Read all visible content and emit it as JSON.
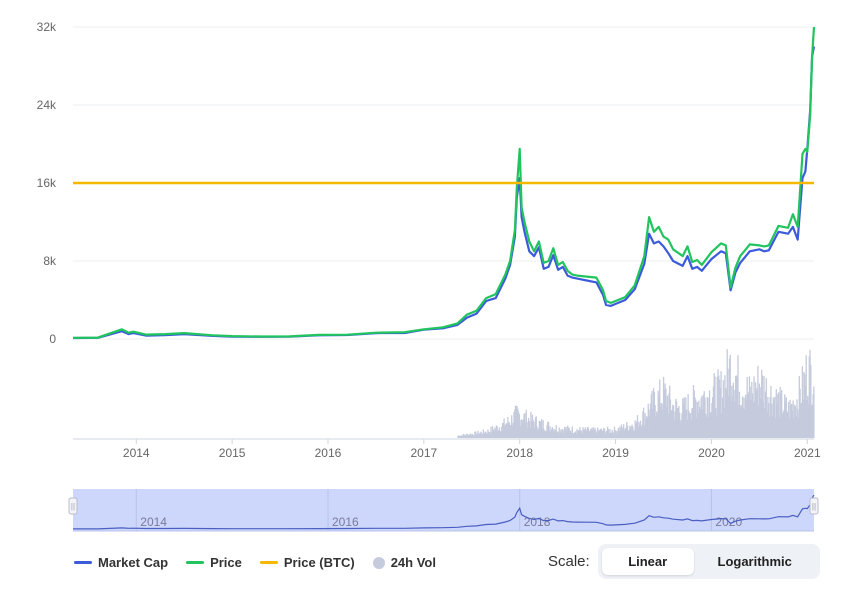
{
  "chart_data": {
    "type": "line",
    "y_ticks": [
      "32k",
      "24k",
      "16k",
      "8k",
      "0"
    ],
    "y_tick_values": [
      32000,
      24000,
      16000,
      8000,
      0
    ],
    "ylim": [
      0,
      32000
    ],
    "x_ticks": [
      "2014",
      "2015",
      "2016",
      "2017",
      "2018",
      "2019",
      "2020",
      "2021"
    ],
    "x_tick_values": [
      2014,
      2015,
      2016,
      2017,
      2018,
      2019,
      2020,
      2021
    ],
    "xlim": [
      2013.34,
      2021.07
    ],
    "grid": true,
    "legend_position": "bottom-left",
    "series": [
      {
        "name": "Market Cap",
        "color": "#3b5bdb",
        "x": [
          2013.34,
          2013.6,
          2013.85,
          2013.92,
          2013.97,
          2014.1,
          2014.3,
          2014.5,
          2014.8,
          2015.0,
          2015.3,
          2015.6,
          2015.9,
          2016.2,
          2016.5,
          2016.8,
          2017.0,
          2017.2,
          2017.35,
          2017.45,
          2017.55,
          2017.65,
          2017.75,
          2017.85,
          2017.9,
          2017.95,
          2017.97,
          2018.0,
          2018.02,
          2018.05,
          2018.1,
          2018.15,
          2018.2,
          2018.25,
          2018.3,
          2018.35,
          2018.4,
          2018.45,
          2018.5,
          2018.55,
          2018.6,
          2018.7,
          2018.8,
          2018.87,
          2018.9,
          2018.95,
          2019.0,
          2019.1,
          2019.2,
          2019.3,
          2019.35,
          2019.4,
          2019.45,
          2019.5,
          2019.55,
          2019.6,
          2019.7,
          2019.75,
          2019.8,
          2019.85,
          2019.9,
          2020.0,
          2020.1,
          2020.15,
          2020.2,
          2020.25,
          2020.3,
          2020.4,
          2020.5,
          2020.55,
          2020.6,
          2020.7,
          2020.8,
          2020.85,
          2020.9,
          2020.95,
          2020.98,
          2021.0,
          2021.03,
          2021.05,
          2021.07
        ],
        "values": [
          100,
          120,
          800,
          500,
          600,
          350,
          400,
          500,
          320,
          250,
          230,
          240,
          380,
          410,
          600,
          620,
          950,
          1100,
          1450,
          2200,
          2600,
          3900,
          4200,
          6200,
          7600,
          10500,
          14500,
          16500,
          12500,
          11000,
          9000,
          8500,
          9400,
          7200,
          7400,
          8600,
          7100,
          7400,
          6500,
          6300,
          6200,
          6000,
          5800,
          4500,
          3500,
          3400,
          3600,
          4000,
          5100,
          7700,
          10800,
          9800,
          10000,
          9500,
          8800,
          8000,
          7500,
          8500,
          7200,
          7400,
          7000,
          8200,
          9000,
          8800,
          5000,
          6800,
          7800,
          9000,
          9200,
          9000,
          9100,
          11000,
          10800,
          11500,
          10200,
          16500,
          17200,
          19500,
          23500,
          29000,
          30000
        ]
      },
      {
        "name": "Price",
        "color": "#21c45d",
        "x": [
          2013.34,
          2013.6,
          2013.85,
          2013.92,
          2013.97,
          2014.1,
          2014.3,
          2014.5,
          2014.8,
          2015.0,
          2015.3,
          2015.6,
          2015.9,
          2016.2,
          2016.5,
          2016.8,
          2017.0,
          2017.2,
          2017.35,
          2017.45,
          2017.55,
          2017.65,
          2017.75,
          2017.85,
          2017.9,
          2017.95,
          2017.97,
          2018.0,
          2018.02,
          2018.05,
          2018.1,
          2018.15,
          2018.2,
          2018.25,
          2018.3,
          2018.35,
          2018.4,
          2018.45,
          2018.5,
          2018.55,
          2018.6,
          2018.7,
          2018.8,
          2018.87,
          2018.9,
          2018.95,
          2019.0,
          2019.1,
          2019.2,
          2019.3,
          2019.35,
          2019.4,
          2019.45,
          2019.5,
          2019.55,
          2019.6,
          2019.7,
          2019.75,
          2019.8,
          2019.85,
          2019.9,
          2020.0,
          2020.1,
          2020.15,
          2020.2,
          2020.25,
          2020.3,
          2020.4,
          2020.5,
          2020.55,
          2020.6,
          2020.7,
          2020.8,
          2020.85,
          2020.9,
          2020.95,
          2020.98,
          2021.0,
          2021.03,
          2021.05,
          2021.07
        ],
        "values": [
          120,
          140,
          1000,
          650,
          750,
          450,
          500,
          600,
          380,
          300,
          260,
          270,
          420,
          440,
          650,
          700,
          1000,
          1200,
          1600,
          2500,
          2900,
          4200,
          4600,
          6600,
          8000,
          11200,
          15500,
          19500,
          13500,
          12000,
          10000,
          9000,
          10000,
          7800,
          8000,
          9300,
          7600,
          7900,
          7000,
          6600,
          6500,
          6400,
          6300,
          5000,
          3900,
          3700,
          3900,
          4300,
          5500,
          8500,
          12500,
          11000,
          11500,
          10500,
          10200,
          9200,
          8500,
          9500,
          7900,
          8100,
          7600,
          8900,
          9800,
          9600,
          5300,
          7300,
          8500,
          9700,
          9600,
          9500,
          9600,
          11600,
          11400,
          12800,
          11500,
          19000,
          19500,
          19200,
          23000,
          29000,
          32000
        ]
      },
      {
        "name": "Price (BTC)",
        "color": "#f5b800",
        "x": [
          2013.34,
          2021.07
        ],
        "values": [
          16000,
          16000
        ]
      },
      {
        "name": "24h Vol",
        "color": "#c5cbdc",
        "type": "bar",
        "x": [
          2017.35,
          2017.5,
          2017.65,
          2017.8,
          2017.9,
          2017.97,
          2018.05,
          2018.2,
          2018.4,
          2018.6,
          2018.8,
          2019.0,
          2019.2,
          2019.3,
          2019.4,
          2019.5,
          2019.6,
          2019.7,
          2019.8,
          2019.9,
          2020.0,
          2020.1,
          2020.15,
          2020.2,
          2020.3,
          2020.4,
          2020.5,
          2020.6,
          2020.7,
          2020.8,
          2020.9,
          2020.95,
          2021.0,
          2021.03,
          2021.05
        ],
        "relative_values": [
          0.03,
          0.05,
          0.08,
          0.15,
          0.22,
          0.3,
          0.25,
          0.18,
          0.12,
          0.1,
          0.09,
          0.1,
          0.18,
          0.3,
          0.45,
          0.55,
          0.38,
          0.35,
          0.45,
          0.5,
          0.55,
          0.6,
          0.75,
          0.9,
          0.65,
          0.55,
          0.7,
          0.55,
          0.45,
          0.35,
          0.5,
          0.65,
          0.85,
          0.8,
          0.82
        ]
      }
    ]
  },
  "navigator": {
    "x_ticks": [
      "2014",
      "2016",
      "2018",
      "2020"
    ],
    "x_tick_values": [
      2014,
      2016,
      2018,
      2020
    ],
    "handle_left": "||",
    "handle_right": "||"
  },
  "legend": {
    "items": [
      {
        "label": "Market Cap",
        "color": "#3b5bdb",
        "kind": "line"
      },
      {
        "label": "Price",
        "color": "#21c45d",
        "kind": "line"
      },
      {
        "label": "Price (BTC)",
        "color": "#f5b800",
        "kind": "line"
      },
      {
        "label": "24h Vol",
        "color": "#c5cbdc",
        "kind": "dot"
      }
    ]
  },
  "scale": {
    "label": "Scale:",
    "options": [
      "Linear",
      "Logarithmic"
    ],
    "selected": "Linear"
  }
}
